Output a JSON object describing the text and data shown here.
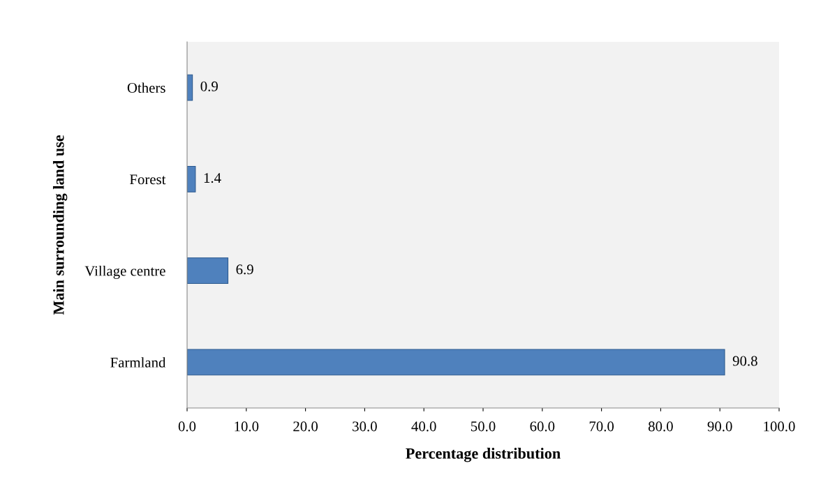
{
  "chart_data": {
    "type": "bar",
    "orientation": "horizontal",
    "xlabel": "Percentage distribution",
    "ylabel": "Main surrounding land use",
    "categories": [
      "Others",
      "Forest",
      "Village centre",
      "Farmland"
    ],
    "values": [
      0.9,
      1.4,
      6.9,
      90.8
    ],
    "color": "#4f81bd",
    "xlim": [
      0,
      100
    ],
    "xticks": [
      {
        "value": 0,
        "label": "0.0"
      },
      {
        "value": 10,
        "label": "10.0"
      },
      {
        "value": 20,
        "label": "20.0"
      },
      {
        "value": 30,
        "label": "30.0"
      },
      {
        "value": 40,
        "label": "40.0"
      },
      {
        "value": 50,
        "label": "50.0"
      },
      {
        "value": 60,
        "label": "60.0"
      },
      {
        "value": 70,
        "label": "70.0"
      },
      {
        "value": 80,
        "label": "80.0"
      },
      {
        "value": 90,
        "label": "90.0"
      },
      {
        "value": 100,
        "label": "100.0"
      }
    ],
    "data_labels": true,
    "grid": false,
    "legend": false
  }
}
